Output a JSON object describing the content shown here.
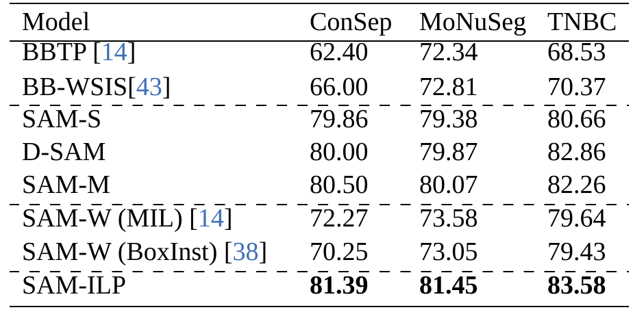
{
  "table": {
    "header": [
      "Model",
      "ConSep",
      "MoNuSeg",
      "TNBC"
    ],
    "rows": [
      {
        "model": "BBTP ",
        "cite": "14",
        "cite_suffix": "]",
        "cite_prefix": "[",
        "values": [
          "62.40",
          "72.34",
          "68.53"
        ]
      },
      {
        "model": "BB-WSIS",
        "cite": "43",
        "cite_suffix": "]",
        "cite_prefix": "[",
        "values": [
          "66.00",
          "72.81",
          "70.37"
        ]
      },
      {
        "model": "SAM-S",
        "values": [
          "79.86",
          "79.38",
          "80.66"
        ]
      },
      {
        "model": "D-SAM",
        "values": [
          "80.00",
          "79.87",
          "82.86"
        ]
      },
      {
        "model": "SAM-M",
        "values": [
          "80.50",
          "80.07",
          "82.26"
        ]
      },
      {
        "model": "SAM-W (MIL) ",
        "cite": "14",
        "cite_suffix": "]",
        "cite_prefix": "[",
        "values": [
          "72.27",
          "73.58",
          "79.64"
        ]
      },
      {
        "model": "SAM-W (BoxInst) ",
        "cite": "38",
        "cite_suffix": "]",
        "cite_prefix": "[",
        "values": [
          "70.25",
          "73.05",
          "79.43"
        ]
      },
      {
        "model": "SAM-ILP",
        "values": [
          "81.39",
          "81.45",
          "83.58"
        ],
        "bold_values": true
      }
    ]
  },
  "colors": {
    "text": "#000000",
    "citation": "#3f6fb5"
  }
}
